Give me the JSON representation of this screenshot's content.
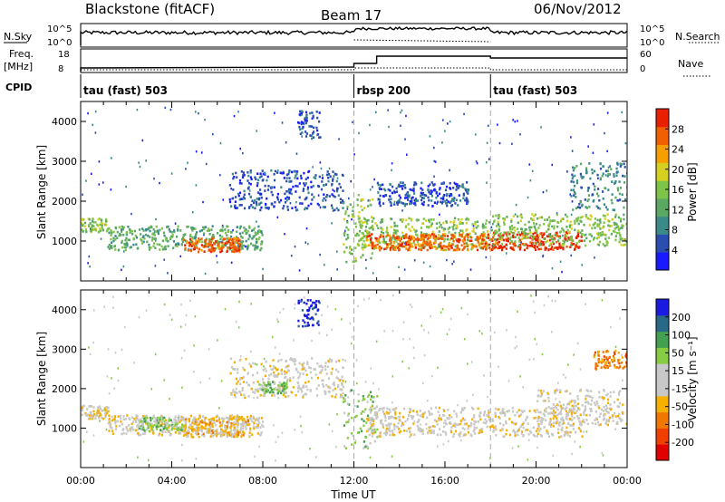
{
  "header": {
    "station": "Blackstone (fitACF)",
    "beam": "Beam 17",
    "date": "06/Nov/2012"
  },
  "strips": {
    "nsky_label": "N.Sky",
    "nsky_ticks": [
      "10^5",
      "10^0"
    ],
    "nsearch_label": "N.Search",
    "nsearch_ticks": [
      "10^5",
      "10^0"
    ],
    "freq_label": "Freq.",
    "freq_unit": "[MHz]",
    "freq_ticks": [
      "18",
      "8"
    ],
    "nave_label": "Nave",
    "nave_ticks": [
      "60",
      "0"
    ],
    "cpid_label": "CPID",
    "cpid_segments": [
      {
        "name": "tau (fast) 503",
        "start_h": 0,
        "end_h": 12
      },
      {
        "name": "rbsp 200",
        "start_h": 12,
        "end_h": 18
      },
      {
        "name": "tau (fast) 503",
        "start_h": 18,
        "end_h": 24
      }
    ]
  },
  "colors": {
    "power": [
      "#1a1aff",
      "#2a4db0",
      "#3a8a8a",
      "#5aa862",
      "#7ec44a",
      "#d8d020",
      "#f5a000",
      "#f06000",
      "#e82000"
    ],
    "velocity": [
      "#e00000",
      "#f04000",
      "#f07800",
      "#f5b000",
      "#c8c8c8",
      "#c8c8c8",
      "#88cc44",
      "#44a050",
      "#2a6888",
      "#1a1ae0"
    ]
  },
  "panels": {
    "power": {
      "ylabel": "Slant Range [km]",
      "cbar_label": "Power [dB]"
    },
    "velocity": {
      "ylabel": "Slant Range [km]",
      "cbar_label": "Velocity [m s⁻¹]"
    }
  },
  "chart_data": [
    {
      "type": "heatmap",
      "title": "Power",
      "x_hours": [
        0,
        24
      ],
      "ylim": [
        0,
        4500
      ],
      "y_ticks": [
        "4000",
        "3000",
        "2000",
        "1000"
      ],
      "x_tick_labels": [
        "00:00",
        "04:00",
        "08:00",
        "12:00",
        "16:00",
        "20:00",
        "00:00"
      ],
      "colorbar_ticks": [
        "28",
        "24",
        "20",
        "16",
        "12",
        "8",
        "4"
      ],
      "colorbar_range": [
        0,
        31
      ],
      "grid_lines_h": [
        12,
        18
      ],
      "bands": [
        {
          "start_h": 0.0,
          "end_h": 1.2,
          "low_km": 1250,
          "high_km": 1600,
          "level": 4
        },
        {
          "start_h": 1.2,
          "end_h": 8.0,
          "low_km": 800,
          "high_km": 1400,
          "level": 3
        },
        {
          "start_h": 4.5,
          "end_h": 7.0,
          "low_km": 750,
          "high_km": 1100,
          "level": 7
        },
        {
          "start_h": 6.5,
          "end_h": 11.5,
          "low_km": 1800,
          "high_km": 2800,
          "level": 1
        },
        {
          "start_h": 9.5,
          "end_h": 10.5,
          "low_km": 3600,
          "high_km": 4300,
          "level": 1
        },
        {
          "start_h": 11.5,
          "end_h": 12.8,
          "low_km": 500,
          "high_km": 2200,
          "level": 4
        },
        {
          "start_h": 12.0,
          "end_h": 18.0,
          "low_km": 800,
          "high_km": 1600,
          "level": 4
        },
        {
          "start_h": 12.5,
          "end_h": 18.0,
          "low_km": 800,
          "high_km": 1200,
          "level": 7
        },
        {
          "start_h": 18.0,
          "end_h": 22.0,
          "low_km": 800,
          "high_km": 1250,
          "level": 8
        },
        {
          "start_h": 18.0,
          "end_h": 24.0,
          "low_km": 900,
          "high_km": 1700,
          "level": 4
        },
        {
          "start_h": 21.5,
          "end_h": 24.0,
          "low_km": 1800,
          "high_km": 3000,
          "level": 2
        },
        {
          "start_h": 13.0,
          "end_h": 17.0,
          "low_km": 1900,
          "high_km": 2500,
          "level": 1
        }
      ]
    },
    {
      "type": "heatmap",
      "title": "Velocity",
      "x_hours": [
        0,
        24
      ],
      "ylim": [
        0,
        4500
      ],
      "y_ticks": [
        "4000",
        "3000",
        "2000",
        "1000"
      ],
      "x_tick_labels": [
        "00:00",
        "04:00",
        "08:00",
        "12:00",
        "16:00",
        "20:00",
        "00:00"
      ],
      "xlabel": "Time UT",
      "colorbar_ticks": [
        "200",
        "100",
        "50",
        "15",
        "-15",
        "-50",
        "-100",
        "-200"
      ],
      "grid_lines_h": [
        12,
        18
      ],
      "bands": [
        {
          "start_h": 0.0,
          "end_h": 1.2,
          "low_km": 1250,
          "high_km": 1600,
          "level": 4
        },
        {
          "start_h": 1.2,
          "end_h": 8.0,
          "low_km": 850,
          "high_km": 1350,
          "level": 4
        },
        {
          "start_h": 2.5,
          "end_h": 4.5,
          "low_km": 950,
          "high_km": 1300,
          "level": 6
        },
        {
          "start_h": 4.5,
          "end_h": 7.5,
          "low_km": 800,
          "high_km": 1350,
          "level": 3
        },
        {
          "start_h": 6.5,
          "end_h": 11.5,
          "low_km": 1800,
          "high_km": 2800,
          "level": 4
        },
        {
          "start_h": 7.8,
          "end_h": 9.0,
          "low_km": 1900,
          "high_km": 2200,
          "level": 6
        },
        {
          "start_h": 9.5,
          "end_h": 10.5,
          "low_km": 3600,
          "high_km": 4300,
          "level": 9
        },
        {
          "start_h": 11.5,
          "end_h": 13.0,
          "low_km": 500,
          "high_km": 2000,
          "level": 6
        },
        {
          "start_h": 12.5,
          "end_h": 22.0,
          "low_km": 800,
          "high_km": 1550,
          "level": 4
        },
        {
          "start_h": 20.0,
          "end_h": 24.0,
          "low_km": 1100,
          "high_km": 2000,
          "level": 4
        },
        {
          "start_h": 22.5,
          "end_h": 24.0,
          "low_km": 2500,
          "high_km": 3000,
          "level": 2
        }
      ]
    }
  ]
}
